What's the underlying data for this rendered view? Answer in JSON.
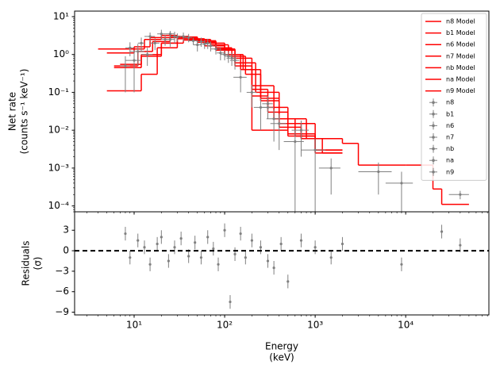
{
  "chart_data": [
    {
      "type": "spectrum",
      "y_label": [
        "Net rate",
        "(counts s⁻¹ keV⁻¹)"
      ],
      "xscale": "log",
      "yscale": "log",
      "xlim": [
        2.2,
        83000
      ],
      "ylim": [
        7e-05,
        14
      ],
      "xticks": [
        10,
        100,
        1000,
        10000
      ],
      "yticks": [
        {
          "value": 10,
          "label": "10¹"
        },
        {
          "value": 1,
          "label": "10⁰"
        },
        {
          "value": 0.1,
          "label": "10⁻¹"
        },
        {
          "value": 0.01,
          "label": "10⁻²"
        },
        {
          "value": 0.001,
          "label": "10⁻³"
        },
        {
          "value": 0.0001,
          "label": "10⁻⁴"
        }
      ],
      "legend": "upper right",
      "models": [
        {
          "name": "n8 Model",
          "color": "#ff0000",
          "bins": [
            4,
            10,
            13,
            20,
            30,
            50,
            80,
            130,
            200,
            300,
            500,
            1000,
            2000
          ],
          "values": [
            1.4,
            1.4,
            2.5,
            3.2,
            2.9,
            2.2,
            1.3,
            0.5,
            0.12,
            0.03,
            0.008,
            0.003
          ]
        },
        {
          "name": "b1 Model",
          "color": "#ff0000",
          "bins": [
            200,
            300,
            500,
            1000,
            2000,
            3000,
            5000,
            10000,
            20000,
            25000,
            50000
          ],
          "values": [
            0.08,
            0.04,
            0.015,
            0.006,
            0.0045,
            0.0012,
            0.0012,
            0.0012,
            0.00028,
            0.00011
          ]
        },
        {
          "name": "n6 Model",
          "color": "#ff0000",
          "bins": [
            5,
            10,
            15,
            25,
            40,
            70,
            110,
            170,
            250,
            400,
            700,
            1200,
            2000
          ],
          "values": [
            1.1,
            1.6,
            2.8,
            3.0,
            2.5,
            1.8,
            0.9,
            0.3,
            0.06,
            0.015,
            0.006,
            0.0025
          ]
        },
        {
          "name": "n7 Model",
          "color": "#ff0000",
          "bins": [
            5,
            12,
            18,
            30,
            50,
            80,
            120,
            200,
            350,
            600,
            1000,
            2000
          ],
          "values": [
            0.11,
            0.3,
            1.5,
            2.6,
            2.1,
            1.5,
            0.8,
            0.15,
            0.02,
            0.007,
            0.0025
          ]
        },
        {
          "name": "nb Model",
          "color": "#ff0000",
          "bins": [
            6,
            11,
            16,
            25,
            40,
            60,
            100,
            150,
            200,
            300,
            500,
            1000,
            2000
          ],
          "values": [
            0.5,
            1.2,
            2.2,
            2.8,
            2.6,
            2.0,
            1.0,
            0.4,
            0.01,
            0.01,
            0.007,
            0.003
          ]
        },
        {
          "name": "na Model",
          "color": "#ff0000",
          "bins": [
            6,
            12,
            20,
            35,
            60,
            100,
            160,
            250,
            400,
            700,
            1500
          ],
          "values": [
            0.45,
            0.9,
            2.0,
            2.4,
            1.7,
            1.0,
            0.4,
            0.07,
            0.012,
            0.006
          ]
        },
        {
          "name": "n9 Model",
          "color": "#ff0000",
          "bins": [
            7,
            12,
            20,
            30,
            50,
            80,
            130,
            220,
            400,
            800,
            2000
          ],
          "values": [
            0.55,
            1.0,
            2.0,
            2.8,
            2.3,
            1.4,
            0.6,
            0.1,
            0.02,
            0.006
          ]
        }
      ],
      "series": [
        {
          "name": "n8",
          "color": "#808080",
          "x": [
            9,
            15,
            25,
            45,
            80,
            150
          ],
          "xerr": [
            1,
            2,
            3,
            5,
            10,
            25
          ],
          "values": [
            1.5,
            3.0,
            3.5,
            2.3,
            1.4,
            0.25
          ],
          "yerr": [
            0.6,
            0.8,
            0.7,
            0.5,
            0.4,
            0.15
          ]
        },
        {
          "name": "b1",
          "color": "#808080",
          "x": [
            300,
            700,
            1500,
            5000,
            9000,
            40000
          ],
          "xerr": [
            50,
            150,
            400,
            2000,
            3000,
            10000
          ],
          "values": [
            0.04,
            0.01,
            0.001,
            0.0008,
            0.0004,
            0.0002
          ],
          "yerr": [
            0.02,
            0.008,
            0.0008,
            0.0006,
            0.0004,
            5e-05
          ]
        },
        {
          "name": "n6",
          "color": "#808080",
          "x": [
            12,
            20,
            35,
            60,
            100,
            250
          ],
          "xerr": [
            1,
            2,
            3,
            6,
            10,
            40
          ],
          "values": [
            2.0,
            3.5,
            3.0,
            1.9,
            1.0,
            0.04
          ],
          "yerr": [
            0.8,
            1,
            0.8,
            0.5,
            0.3,
            0.03
          ]
        },
        {
          "name": "n7",
          "color": "#808080",
          "x": [
            14,
            22,
            40,
            70,
            130,
            400
          ],
          "xerr": [
            2,
            2,
            4,
            6,
            15,
            80
          ],
          "values": [
            1.0,
            2.5,
            2.8,
            1.7,
            0.7,
            0.015
          ],
          "yerr": [
            0.5,
            0.8,
            0.7,
            0.5,
            0.3,
            0.012
          ]
        },
        {
          "name": "nb",
          "color": "#808080",
          "x": [
            8,
            17,
            30,
            55,
            120,
            350
          ],
          "xerr": [
            1,
            2,
            3,
            6,
            15,
            60
          ],
          "values": [
            0.5,
            2.0,
            2.9,
            2.2,
            0.8,
            0.02
          ],
          "yerr": [
            0.4,
            0.7,
            0.7,
            0.6,
            0.3,
            0.015
          ]
        },
        {
          "name": "na",
          "color": "#808080",
          "x": [
            10,
            25,
            50,
            90,
            200,
            600
          ],
          "xerr": [
            2,
            3,
            5,
            8,
            25,
            150
          ],
          "values": [
            0.7,
            2.5,
            1.8,
            1.1,
            0.1,
            0.005
          ],
          "yerr": [
            0.6,
            0.9,
            0.6,
            0.4,
            0.06,
            0.005
          ]
        },
        {
          "name": "n9",
          "color": "#808080",
          "x": [
            11,
            28,
            65,
            110,
            300,
            1000
          ],
          "xerr": [
            2,
            3,
            6,
            10,
            40,
            300
          ],
          "values": [
            1.2,
            3.0,
            2.0,
            0.9,
            0.05,
            0.003
          ],
          "yerr": [
            0.7,
            1,
            0.6,
            0.3,
            0.03,
            0.003
          ]
        }
      ]
    },
    {
      "type": "errorbar",
      "x_label": [
        "Energy",
        "(keV)"
      ],
      "y_label": [
        "Residuals",
        "(σ)"
      ],
      "xscale": "log",
      "xlim": [
        2.2,
        83000
      ],
      "ylim": [
        -9.4,
        5.7
      ],
      "xticks": [
        {
          "value": 10,
          "label": "10¹"
        },
        {
          "value": 100,
          "label": "10²"
        },
        {
          "value": 1000,
          "label": "10³"
        },
        {
          "value": 10000,
          "label": "10⁴"
        }
      ],
      "yticks": [
        3,
        0,
        {
          "value": -3,
          "label": "−3"
        },
        {
          "value": -6,
          "label": "−6"
        },
        {
          "value": -9,
          "label": "−9"
        }
      ],
      "hline": 0,
      "series": [
        {
          "color": "#808080",
          "x": [
            8,
            9,
            11,
            13,
            15,
            18,
            20,
            24,
            28,
            33,
            40,
            47,
            55,
            65,
            75,
            85,
            100,
            115,
            130,
            150,
            170,
            200,
            250,
            300,
            350,
            420,
            500,
            700,
            1000,
            1500,
            2000,
            9000,
            25000,
            40000
          ],
          "values": [
            2.5,
            -1,
            1.5,
            0.5,
            -2,
            1,
            2,
            -1.5,
            0.5,
            1.8,
            -0.8,
            1.2,
            -1,
            2,
            0.3,
            -2,
            3,
            -7.5,
            -0.5,
            2.5,
            -1,
            1.5,
            0.5,
            -1.5,
            -2.5,
            1,
            -4.5,
            1.5,
            0.5,
            -1,
            1,
            -2,
            2.8,
            0.8
          ],
          "yerr": [
            1,
            1,
            1,
            1,
            1,
            1,
            1,
            1,
            1,
            1,
            1,
            1,
            1,
            1,
            1,
            1,
            1,
            1,
            1,
            1,
            1,
            1,
            1,
            1,
            1,
            1,
            1,
            1,
            1,
            1,
            1,
            1,
            1,
            1
          ]
        }
      ]
    }
  ]
}
